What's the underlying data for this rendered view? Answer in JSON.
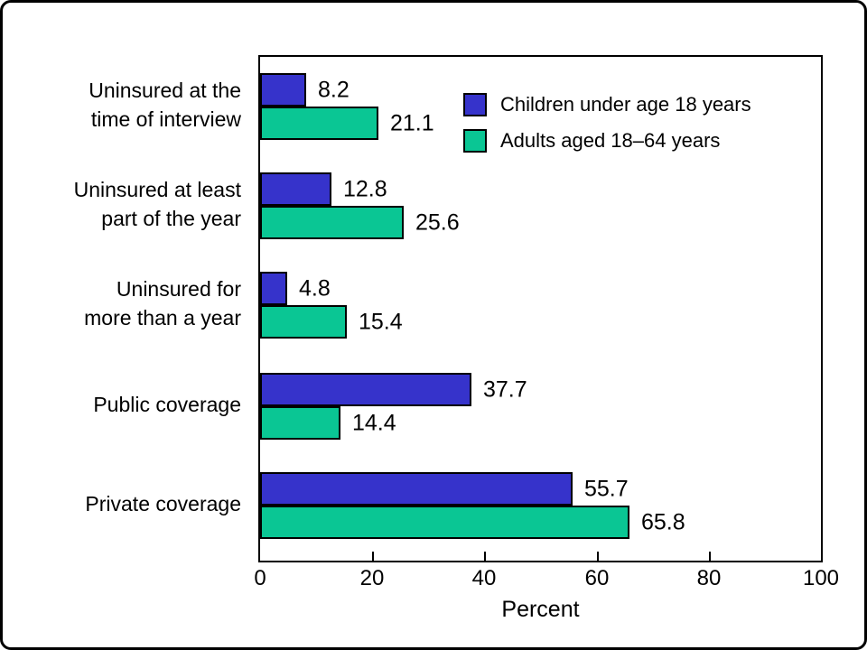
{
  "chart_data": {
    "type": "bar",
    "orientation": "horizontal",
    "title": "",
    "xlabel": "Percent",
    "ylabel": "",
    "xlim": [
      0,
      100
    ],
    "xticks": [
      0,
      20,
      40,
      60,
      80,
      100
    ],
    "grid": false,
    "legend_position": "top-right-inside",
    "categories": [
      [
        "Uninsured at the",
        "time of interview"
      ],
      [
        "Uninsured at least",
        "part of the year"
      ],
      [
        "Uninsured for",
        "more than a year"
      ],
      [
        "Public coverage"
      ],
      [
        "Private coverage"
      ]
    ],
    "series": [
      {
        "name": "Children under age 18 years",
        "color": "#3633CB",
        "values": [
          8.2,
          12.8,
          4.8,
          37.7,
          55.7
        ]
      },
      {
        "name": "Adults aged 18–64 years",
        "color": "#0AC694",
        "values": [
          21.1,
          25.6,
          15.4,
          14.4,
          65.8
        ]
      }
    ],
    "colors": {
      "bar_outline": "#000000",
      "text": "#000000",
      "background": "#ffffff"
    }
  }
}
